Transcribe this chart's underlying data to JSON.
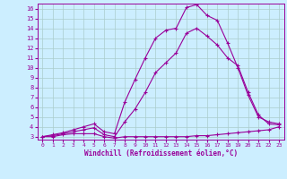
{
  "xlabel": "Windchill (Refroidissement éolien,°C)",
  "xlim": [
    -0.5,
    23.5
  ],
  "ylim": [
    2.7,
    16.5
  ],
  "yticks": [
    3,
    4,
    5,
    6,
    7,
    8,
    9,
    10,
    11,
    12,
    13,
    14,
    15,
    16
  ],
  "xticks": [
    0,
    1,
    2,
    3,
    4,
    5,
    6,
    7,
    8,
    9,
    10,
    11,
    12,
    13,
    14,
    15,
    16,
    17,
    18,
    19,
    20,
    21,
    22,
    23
  ],
  "background_color": "#cceeff",
  "grid_color": "#aacccc",
  "line_color": "#990099",
  "line1_x": [
    0,
    1,
    2,
    3,
    4,
    5,
    6,
    7,
    8,
    9,
    10,
    11,
    12,
    13,
    14,
    15,
    16,
    17,
    18,
    19,
    20,
    21,
    22,
    23
  ],
  "line1_y": [
    3.0,
    3.0,
    3.2,
    3.3,
    3.3,
    3.3,
    3.0,
    2.85,
    3.0,
    3.0,
    3.0,
    3.0,
    3.0,
    3.0,
    3.0,
    3.1,
    3.1,
    3.2,
    3.3,
    3.4,
    3.5,
    3.6,
    3.7,
    4.0
  ],
  "line2_x": [
    0,
    1,
    2,
    3,
    4,
    5,
    6,
    7,
    8,
    9,
    10,
    11,
    12,
    13,
    14,
    15,
    16,
    17,
    18,
    19,
    20,
    21,
    22,
    23
  ],
  "line2_y": [
    3.0,
    3.1,
    3.3,
    3.5,
    3.7,
    3.9,
    3.2,
    3.0,
    4.5,
    5.8,
    7.5,
    9.5,
    10.5,
    11.5,
    13.5,
    14.0,
    13.2,
    12.3,
    11.0,
    10.2,
    7.5,
    5.2,
    4.3,
    4.2
  ],
  "line3_x": [
    0,
    1,
    2,
    3,
    4,
    5,
    6,
    7,
    8,
    9,
    10,
    11,
    12,
    13,
    14,
    15,
    16,
    17,
    18,
    19,
    20,
    21,
    22,
    23
  ],
  "line3_y": [
    3.0,
    3.2,
    3.4,
    3.7,
    4.0,
    4.3,
    3.5,
    3.3,
    6.5,
    8.8,
    11.0,
    13.0,
    13.8,
    14.0,
    16.1,
    16.4,
    15.3,
    14.8,
    12.5,
    10.0,
    7.2,
    5.0,
    4.5,
    4.3
  ]
}
